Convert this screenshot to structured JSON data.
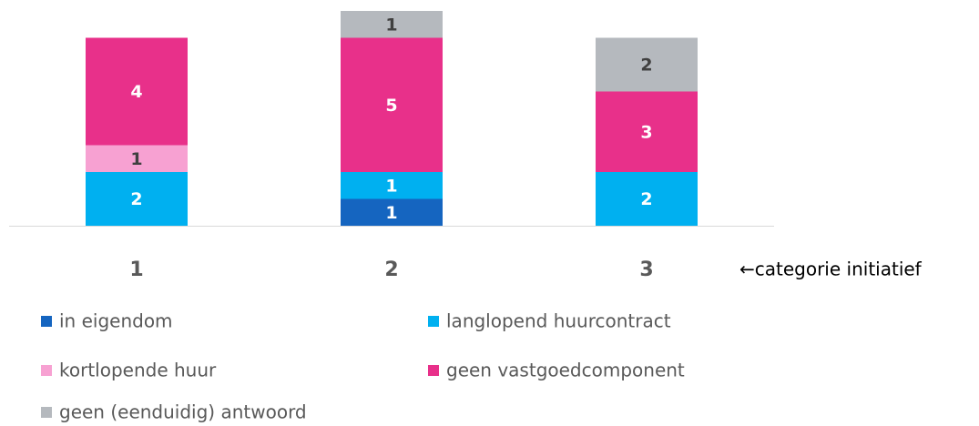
{
  "chart_data": {
    "type": "stacked_bar",
    "categories": [
      "1",
      "2",
      "3"
    ],
    "series": [
      {
        "name": "in eigendom",
        "color": "#1565c0",
        "values": [
          0,
          1,
          0
        ]
      },
      {
        "name": "langlopend huurcontract",
        "color": "#00b0f0",
        "values": [
          2,
          1,
          2
        ]
      },
      {
        "name": "kortlopende huur",
        "color": "#f7a1d2",
        "values": [
          1,
          0,
          0
        ]
      },
      {
        "name": "geen vastgoedcomponent",
        "color": "#e8308a",
        "values": [
          4,
          5,
          3
        ]
      },
      {
        "name": "geen (eenduidig) antwoord",
        "color": "#b5b9be",
        "values": [
          0,
          1,
          2
        ]
      }
    ],
    "ylim": [
      0,
      8
    ],
    "annotation": "←categorie initiatief"
  }
}
